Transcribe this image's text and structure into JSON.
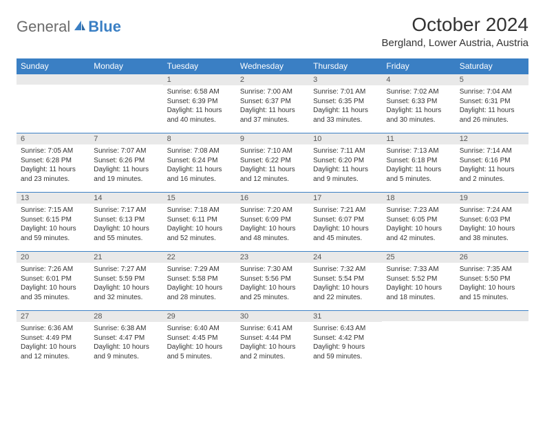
{
  "brand": {
    "part1": "General",
    "part2": "Blue"
  },
  "title": "October 2024",
  "location": "Bergland, Lower Austria, Austria",
  "colors": {
    "header_bg": "#3a7fc4",
    "header_text": "#ffffff",
    "daynum_bg": "#e9e9e9",
    "row_border": "#3a7fc4",
    "body_bg": "#ffffff",
    "text": "#333333",
    "logo_gray": "#6b6b6b",
    "logo_blue": "#3a7fc4"
  },
  "columns": [
    "Sunday",
    "Monday",
    "Tuesday",
    "Wednesday",
    "Thursday",
    "Friday",
    "Saturday"
  ],
  "weeks": [
    [
      null,
      null,
      {
        "n": "1",
        "sr": "6:58 AM",
        "ss": "6:39 PM",
        "dl": "11 hours and 40 minutes."
      },
      {
        "n": "2",
        "sr": "7:00 AM",
        "ss": "6:37 PM",
        "dl": "11 hours and 37 minutes."
      },
      {
        "n": "3",
        "sr": "7:01 AM",
        "ss": "6:35 PM",
        "dl": "11 hours and 33 minutes."
      },
      {
        "n": "4",
        "sr": "7:02 AM",
        "ss": "6:33 PM",
        "dl": "11 hours and 30 minutes."
      },
      {
        "n": "5",
        "sr": "7:04 AM",
        "ss": "6:31 PM",
        "dl": "11 hours and 26 minutes."
      }
    ],
    [
      {
        "n": "6",
        "sr": "7:05 AM",
        "ss": "6:28 PM",
        "dl": "11 hours and 23 minutes."
      },
      {
        "n": "7",
        "sr": "7:07 AM",
        "ss": "6:26 PM",
        "dl": "11 hours and 19 minutes."
      },
      {
        "n": "8",
        "sr": "7:08 AM",
        "ss": "6:24 PM",
        "dl": "11 hours and 16 minutes."
      },
      {
        "n": "9",
        "sr": "7:10 AM",
        "ss": "6:22 PM",
        "dl": "11 hours and 12 minutes."
      },
      {
        "n": "10",
        "sr": "7:11 AM",
        "ss": "6:20 PM",
        "dl": "11 hours and 9 minutes."
      },
      {
        "n": "11",
        "sr": "7:13 AM",
        "ss": "6:18 PM",
        "dl": "11 hours and 5 minutes."
      },
      {
        "n": "12",
        "sr": "7:14 AM",
        "ss": "6:16 PM",
        "dl": "11 hours and 2 minutes."
      }
    ],
    [
      {
        "n": "13",
        "sr": "7:15 AM",
        "ss": "6:15 PM",
        "dl": "10 hours and 59 minutes."
      },
      {
        "n": "14",
        "sr": "7:17 AM",
        "ss": "6:13 PM",
        "dl": "10 hours and 55 minutes."
      },
      {
        "n": "15",
        "sr": "7:18 AM",
        "ss": "6:11 PM",
        "dl": "10 hours and 52 minutes."
      },
      {
        "n": "16",
        "sr": "7:20 AM",
        "ss": "6:09 PM",
        "dl": "10 hours and 48 minutes."
      },
      {
        "n": "17",
        "sr": "7:21 AM",
        "ss": "6:07 PM",
        "dl": "10 hours and 45 minutes."
      },
      {
        "n": "18",
        "sr": "7:23 AM",
        "ss": "6:05 PM",
        "dl": "10 hours and 42 minutes."
      },
      {
        "n": "19",
        "sr": "7:24 AM",
        "ss": "6:03 PM",
        "dl": "10 hours and 38 minutes."
      }
    ],
    [
      {
        "n": "20",
        "sr": "7:26 AM",
        "ss": "6:01 PM",
        "dl": "10 hours and 35 minutes."
      },
      {
        "n": "21",
        "sr": "7:27 AM",
        "ss": "5:59 PM",
        "dl": "10 hours and 32 minutes."
      },
      {
        "n": "22",
        "sr": "7:29 AM",
        "ss": "5:58 PM",
        "dl": "10 hours and 28 minutes."
      },
      {
        "n": "23",
        "sr": "7:30 AM",
        "ss": "5:56 PM",
        "dl": "10 hours and 25 minutes."
      },
      {
        "n": "24",
        "sr": "7:32 AM",
        "ss": "5:54 PM",
        "dl": "10 hours and 22 minutes."
      },
      {
        "n": "25",
        "sr": "7:33 AM",
        "ss": "5:52 PM",
        "dl": "10 hours and 18 minutes."
      },
      {
        "n": "26",
        "sr": "7:35 AM",
        "ss": "5:50 PM",
        "dl": "10 hours and 15 minutes."
      }
    ],
    [
      {
        "n": "27",
        "sr": "6:36 AM",
        "ss": "4:49 PM",
        "dl": "10 hours and 12 minutes."
      },
      {
        "n": "28",
        "sr": "6:38 AM",
        "ss": "4:47 PM",
        "dl": "10 hours and 9 minutes."
      },
      {
        "n": "29",
        "sr": "6:40 AM",
        "ss": "4:45 PM",
        "dl": "10 hours and 5 minutes."
      },
      {
        "n": "30",
        "sr": "6:41 AM",
        "ss": "4:44 PM",
        "dl": "10 hours and 2 minutes."
      },
      {
        "n": "31",
        "sr": "6:43 AM",
        "ss": "4:42 PM",
        "dl": "9 hours and 59 minutes."
      },
      null,
      null
    ]
  ],
  "labels": {
    "sunrise": "Sunrise: ",
    "sunset": "Sunset: ",
    "daylight": "Daylight: "
  }
}
